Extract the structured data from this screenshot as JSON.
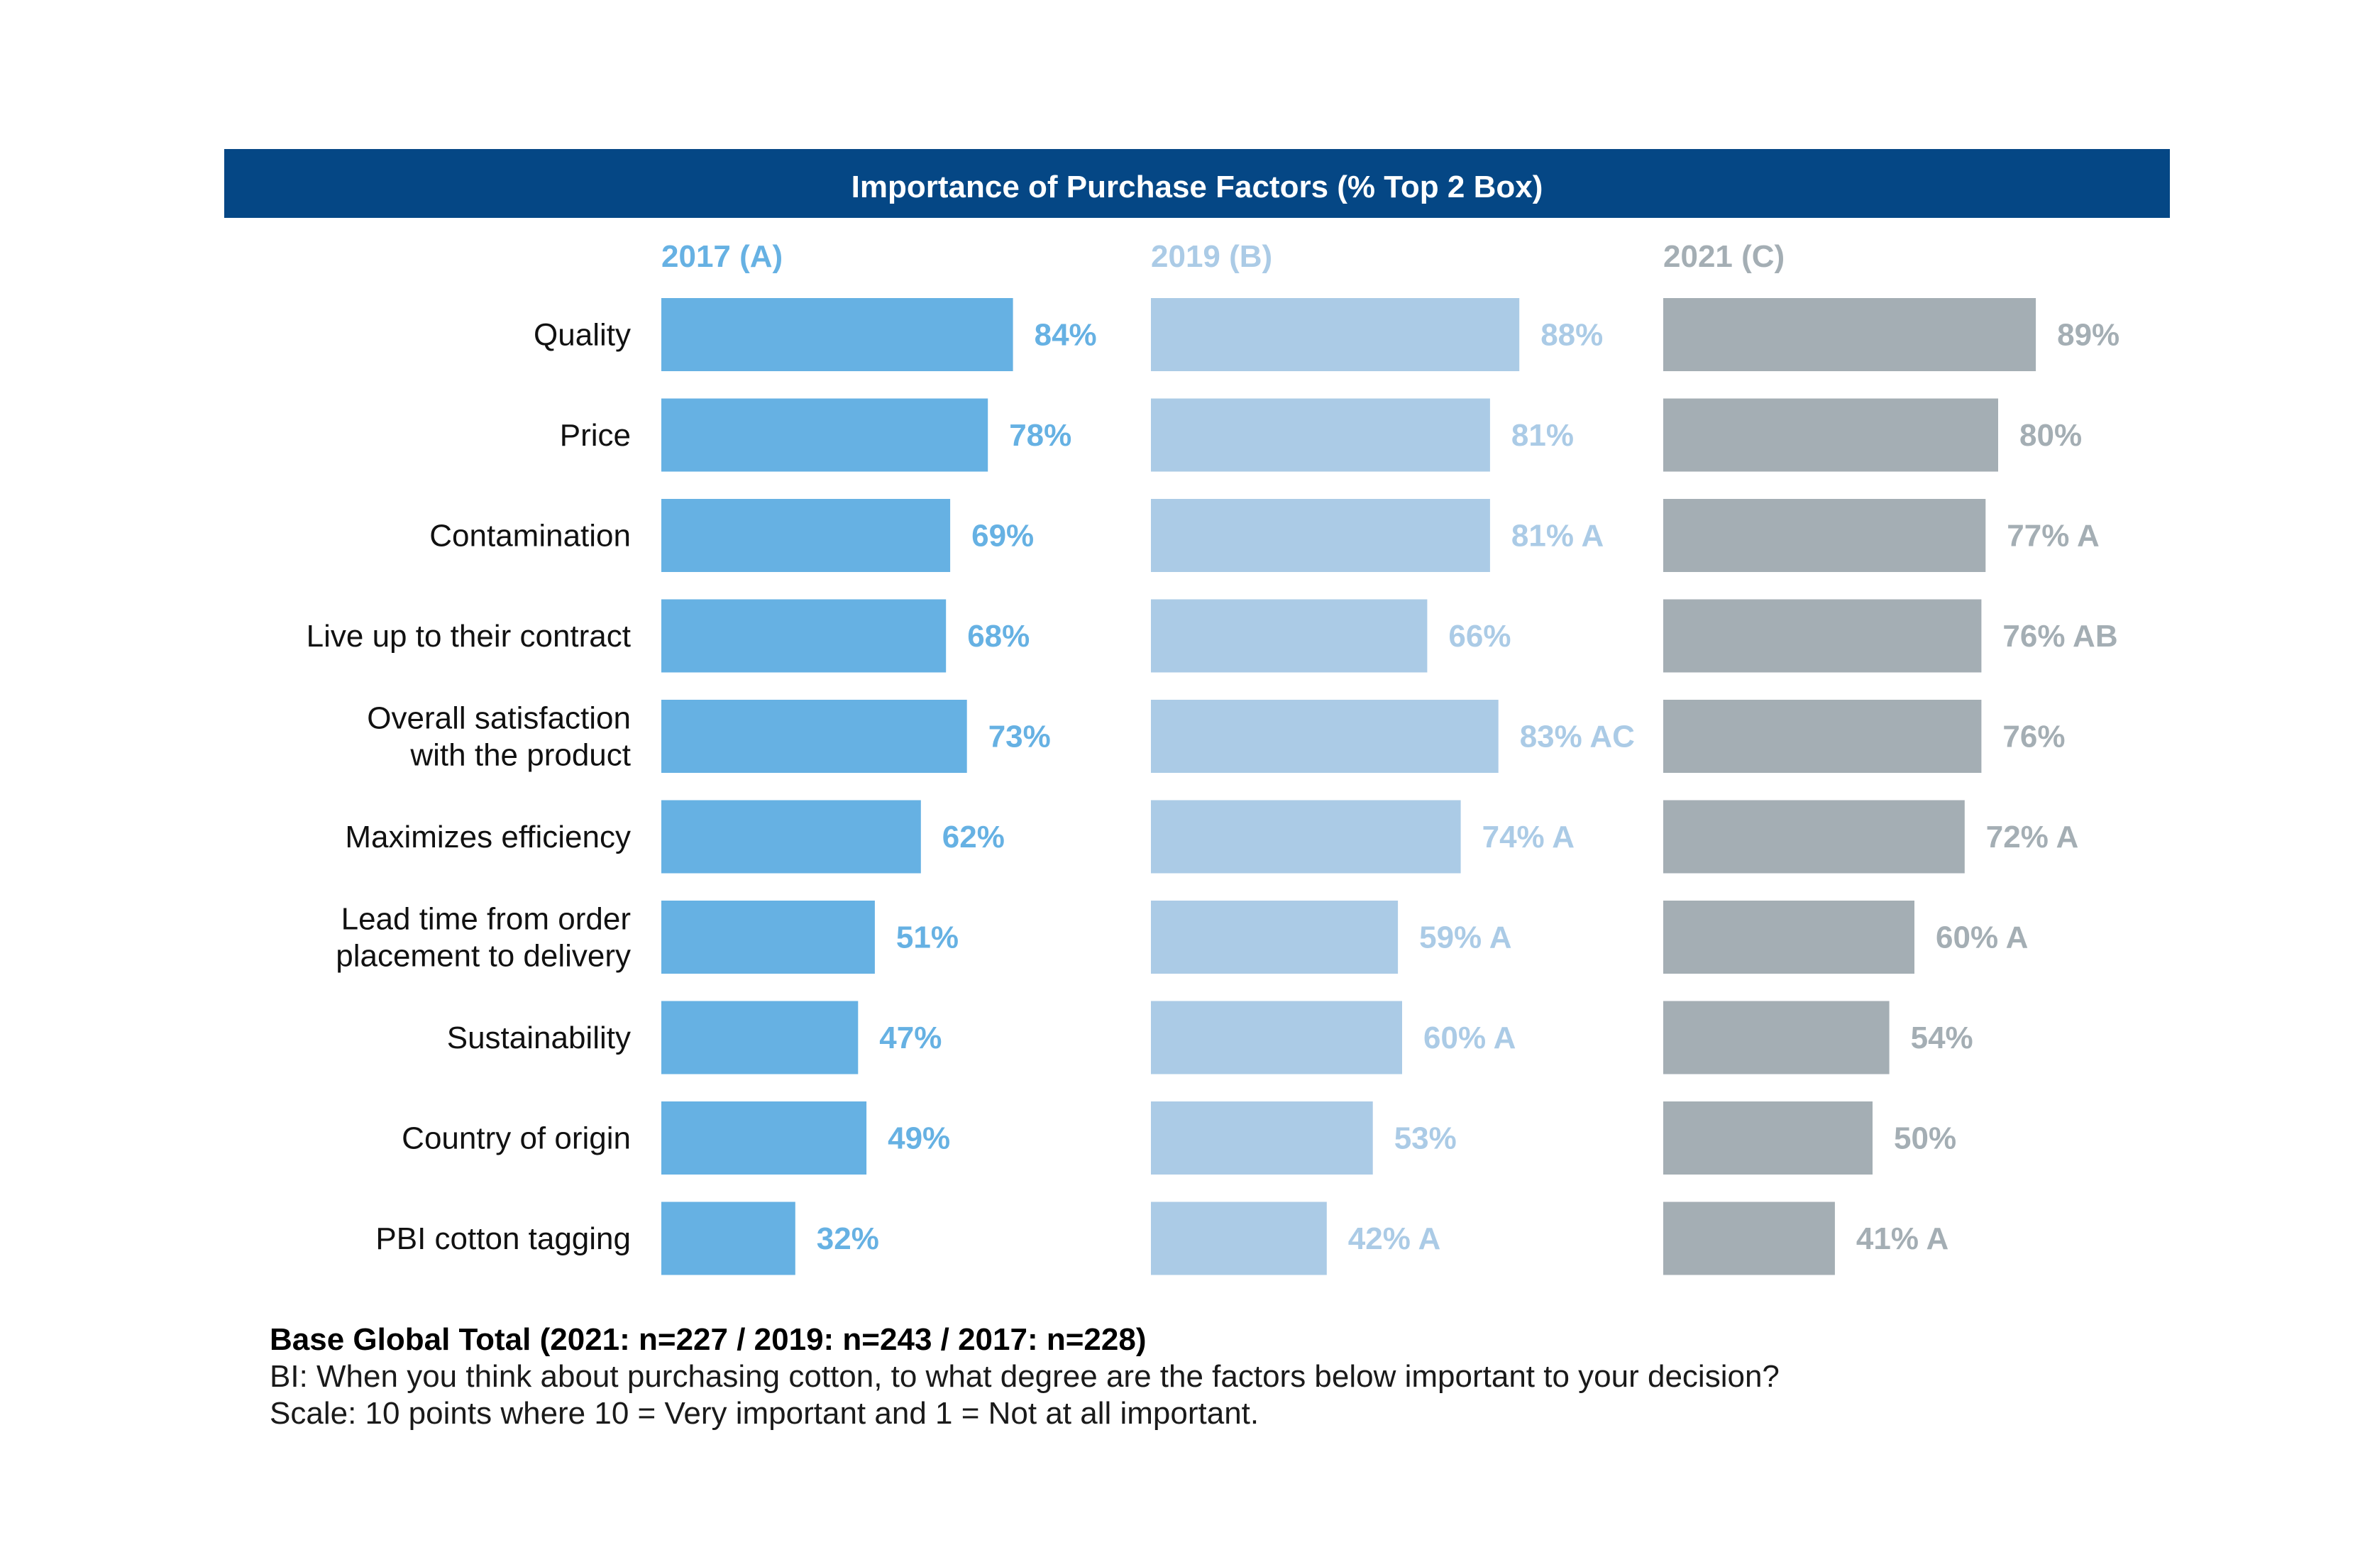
{
  "chart_data": {
    "type": "bar",
    "orientation": "horizontal",
    "title": "Importance of Purchase Factors (% Top 2 Box)",
    "categories": [
      "Quality",
      "Price",
      "Contamination",
      "Live up to their contract",
      "Overall satisfaction with the product",
      "Maximizes efficiency",
      "Lead time from order placement to delivery",
      "Sustainability",
      "Country of origin",
      "PBI cotton tagging"
    ],
    "series": [
      {
        "name": "2017 (A)",
        "color": "#66b1e3",
        "values": [
          84,
          78,
          69,
          68,
          73,
          62,
          51,
          47,
          49,
          32
        ],
        "labels": [
          "84%",
          "78%",
          "69%",
          "68%",
          "73%",
          "62%",
          "51%",
          "47%",
          "49%",
          "32%"
        ]
      },
      {
        "name": "2019 (B)",
        "color": "#abcbe6",
        "values": [
          88,
          81,
          81,
          66,
          83,
          74,
          59,
          60,
          53,
          42
        ],
        "labels": [
          "88%",
          "81%",
          "81% A",
          "66%",
          "83% AC",
          "74% A",
          "59% A",
          "60% A",
          "53%",
          "42% A"
        ]
      },
      {
        "name": "2021 (C)",
        "color": "#a4aeb4",
        "values": [
          89,
          80,
          77,
          76,
          76,
          72,
          60,
          54,
          50,
          41
        ],
        "labels": [
          "89%",
          "80%",
          "77% A",
          "76% AB",
          "76%",
          "72% A",
          "60% A",
          "54%",
          "50%",
          "41% A"
        ]
      }
    ],
    "unit": "%",
    "xlim": [
      0,
      100
    ],
    "grid": false,
    "legend": "none"
  },
  "colors": {
    "title_bar": "#054785",
    "title_text": "#ffffff",
    "category_text": "#111111"
  },
  "footnotes": {
    "base": "Base Global Total (2021: n=227 / 2019: n=243 / 2017: n=228)",
    "question": "BI: When you think about purchasing cotton, to what degree are the factors below important to your decision?",
    "scale": "Scale: 10 points where 10 = Very important and 1 = Not at all important."
  }
}
